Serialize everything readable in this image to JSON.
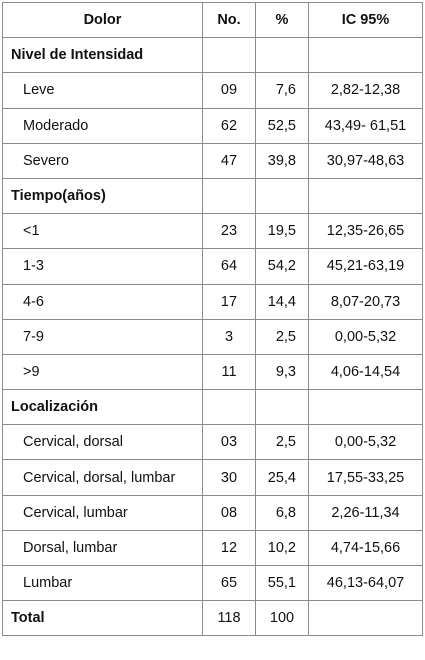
{
  "table": {
    "headers": [
      "Dolor",
      "No.",
      "%",
      "IC 95%"
    ],
    "sections": [
      {
        "title": "Nivel de Intensidad",
        "rows": [
          {
            "label": "Leve",
            "no": "09",
            "pct": "7,6",
            "ic": "2,82-12,38"
          },
          {
            "label": "Moderado",
            "no": "62",
            "pct": "52,5",
            "ic": "43,49- 61,51"
          },
          {
            "label": "Severo",
            "no": "47",
            "pct": "39,8",
            "ic": "30,97-48,63"
          }
        ]
      },
      {
        "title": "Tiempo(años)",
        "rows": [
          {
            "label": "<1",
            "no": "23",
            "pct": "19,5",
            "ic": "12,35-26,65"
          },
          {
            "label": "1-3",
            "no": "64",
            "pct": "54,2",
            "ic": "45,21-63,19"
          },
          {
            "label": "4-6",
            "no": "17",
            "pct": "14,4",
            "ic": "8,07-20,73"
          },
          {
            "label": "7-9",
            "no": "3",
            "pct": "2,5",
            "ic": "0,00-5,32"
          },
          {
            "label": ">9",
            "no": "11",
            "pct": "9,3",
            "ic": "4,06-14,54"
          }
        ]
      },
      {
        "title": "Localización",
        "rows": [
          {
            "label": "Cervical, dorsal",
            "no": "03",
            "pct": "2,5",
            "ic": "0,00-5,32"
          },
          {
            "label": "Cervical, dorsal, lumbar",
            "no": "30",
            "pct": "25,4",
            "ic": "17,55-33,25"
          },
          {
            "label": "Cervical, lumbar",
            "no": "08",
            "pct": "6,8",
            "ic": "2,26-11,34"
          },
          {
            "label": "Dorsal, lumbar",
            "no": "12",
            "pct": "10,2",
            "ic": "4,74-15,66"
          },
          {
            "label": "Lumbar",
            "no": "65",
            "pct": "55,1",
            "ic": "46,13-64,07"
          }
        ]
      }
    ],
    "total": {
      "label": "Total",
      "no": "118",
      "pct": "100",
      "ic": ""
    }
  }
}
